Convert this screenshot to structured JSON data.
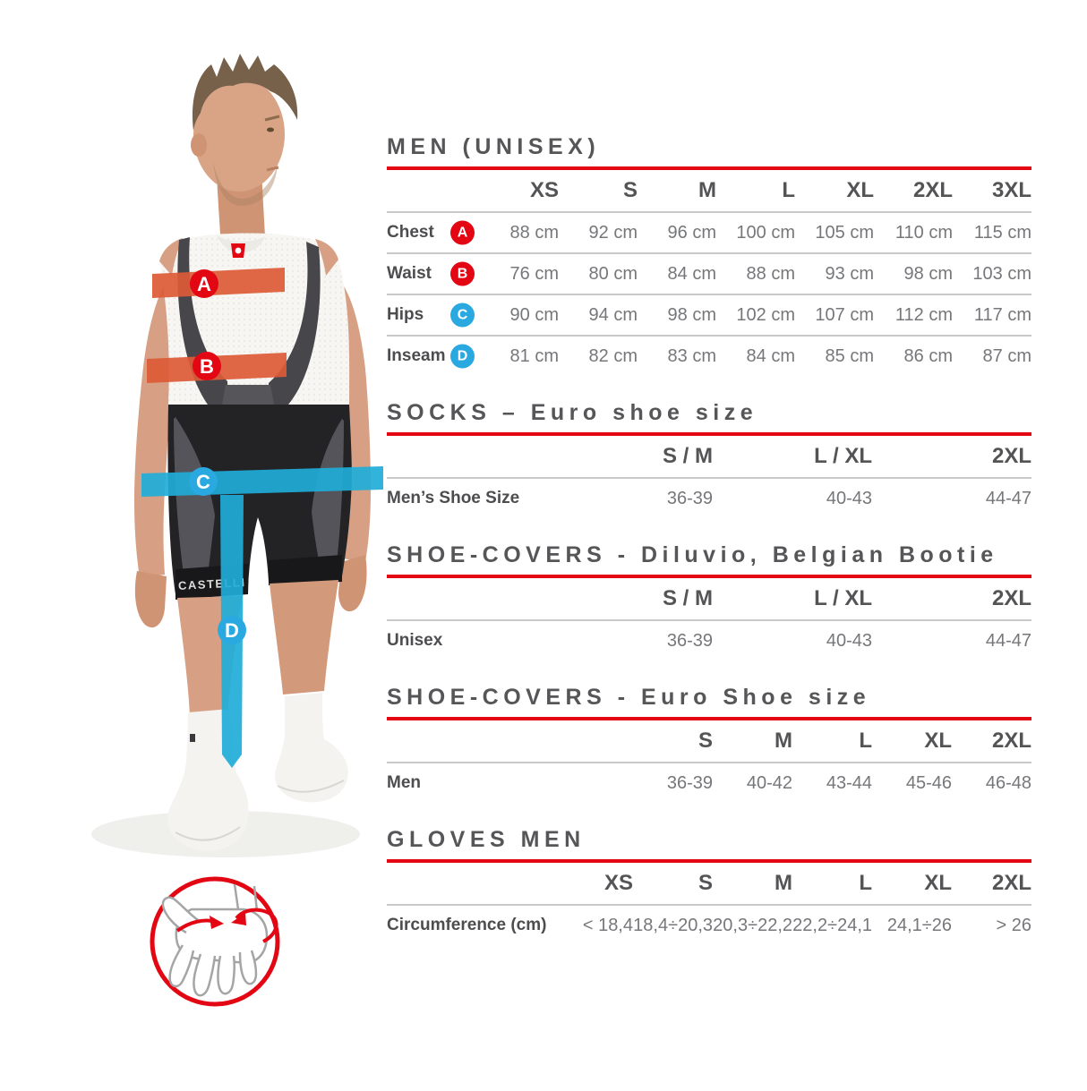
{
  "palette": {
    "accent_red": "#e30613",
    "accent_blue": "#29a9e0",
    "band_orange": "#dd5a36",
    "band_cyan": "#1fadd8",
    "title_text": "#565659",
    "label_text": "#4d4d4f",
    "value_text": "#76777a",
    "separator": "#c9c9c9"
  },
  "figure": {
    "shorts_logo": "CASTELLI",
    "markers": [
      {
        "letter": "A",
        "measures": "Chest",
        "color": "#e30613"
      },
      {
        "letter": "B",
        "measures": "Waist",
        "color": "#e30613"
      },
      {
        "letter": "C",
        "measures": "Hips",
        "color": "#29a9e0"
      },
      {
        "letter": "D",
        "measures": "Inseam",
        "color": "#29a9e0"
      }
    ],
    "icons": {
      "hand": "hand-circumference-icon"
    }
  },
  "tables": [
    {
      "title": "MEN (UNISEX)",
      "columns": [
        "XS",
        "S",
        "M",
        "L",
        "XL",
        "2XL",
        "3XL"
      ],
      "rows": [
        {
          "label": "Chest",
          "badge": "A",
          "badge_color": "#e30613",
          "values": [
            "88 cm",
            "92 cm",
            "96 cm",
            "100 cm",
            "105 cm",
            "110 cm",
            "115 cm"
          ]
        },
        {
          "label": "Waist",
          "badge": "B",
          "badge_color": "#e30613",
          "values": [
            "76 cm",
            "80 cm",
            "84 cm",
            "88 cm",
            "93 cm",
            "98 cm",
            "103 cm"
          ]
        },
        {
          "label": "Hips",
          "badge": "C",
          "badge_color": "#29a9e0",
          "values": [
            "90 cm",
            "94 cm",
            "98 cm",
            "102 cm",
            "107 cm",
            "112 cm",
            "117 cm"
          ]
        },
        {
          "label": "Inseam",
          "badge": "D",
          "badge_color": "#29a9e0",
          "values": [
            "81 cm",
            "82 cm",
            "83 cm",
            "84 cm",
            "85 cm",
            "86 cm",
            "87 cm"
          ]
        }
      ]
    },
    {
      "title": "SOCKS – Euro shoe size",
      "columns": [
        "S / M",
        "L / XL",
        "2XL"
      ],
      "rows": [
        {
          "label": "Men’s Shoe Size",
          "values": [
            "36-39",
            "40-43",
            "44-47"
          ]
        }
      ]
    },
    {
      "title": "SHOE-COVERS - Diluvio, Belgian Bootie",
      "columns": [
        "S / M",
        "L / XL",
        "2XL"
      ],
      "rows": [
        {
          "label": "Unisex",
          "values": [
            "36-39",
            "40-43",
            "44-47"
          ]
        }
      ]
    },
    {
      "title": "SHOE-COVERS - Euro Shoe size",
      "columns": [
        "S",
        "M",
        "L",
        "XL",
        "2XL"
      ],
      "rows": [
        {
          "label": "Men",
          "values": [
            "36-39",
            "40-42",
            "43-44",
            "45-46",
            "46-48"
          ]
        }
      ]
    },
    {
      "title": "GLOVES MEN",
      "columns": [
        "XS",
        "S",
        "M",
        "L",
        "XL",
        "2XL"
      ],
      "rows": [
        {
          "label": "Circumference (cm)",
          "values": [
            "< 18,4",
            "18,4÷20,3",
            "20,3÷22,2",
            "22,2÷24,1",
            "24,1÷26",
            "> 26"
          ]
        }
      ]
    }
  ]
}
